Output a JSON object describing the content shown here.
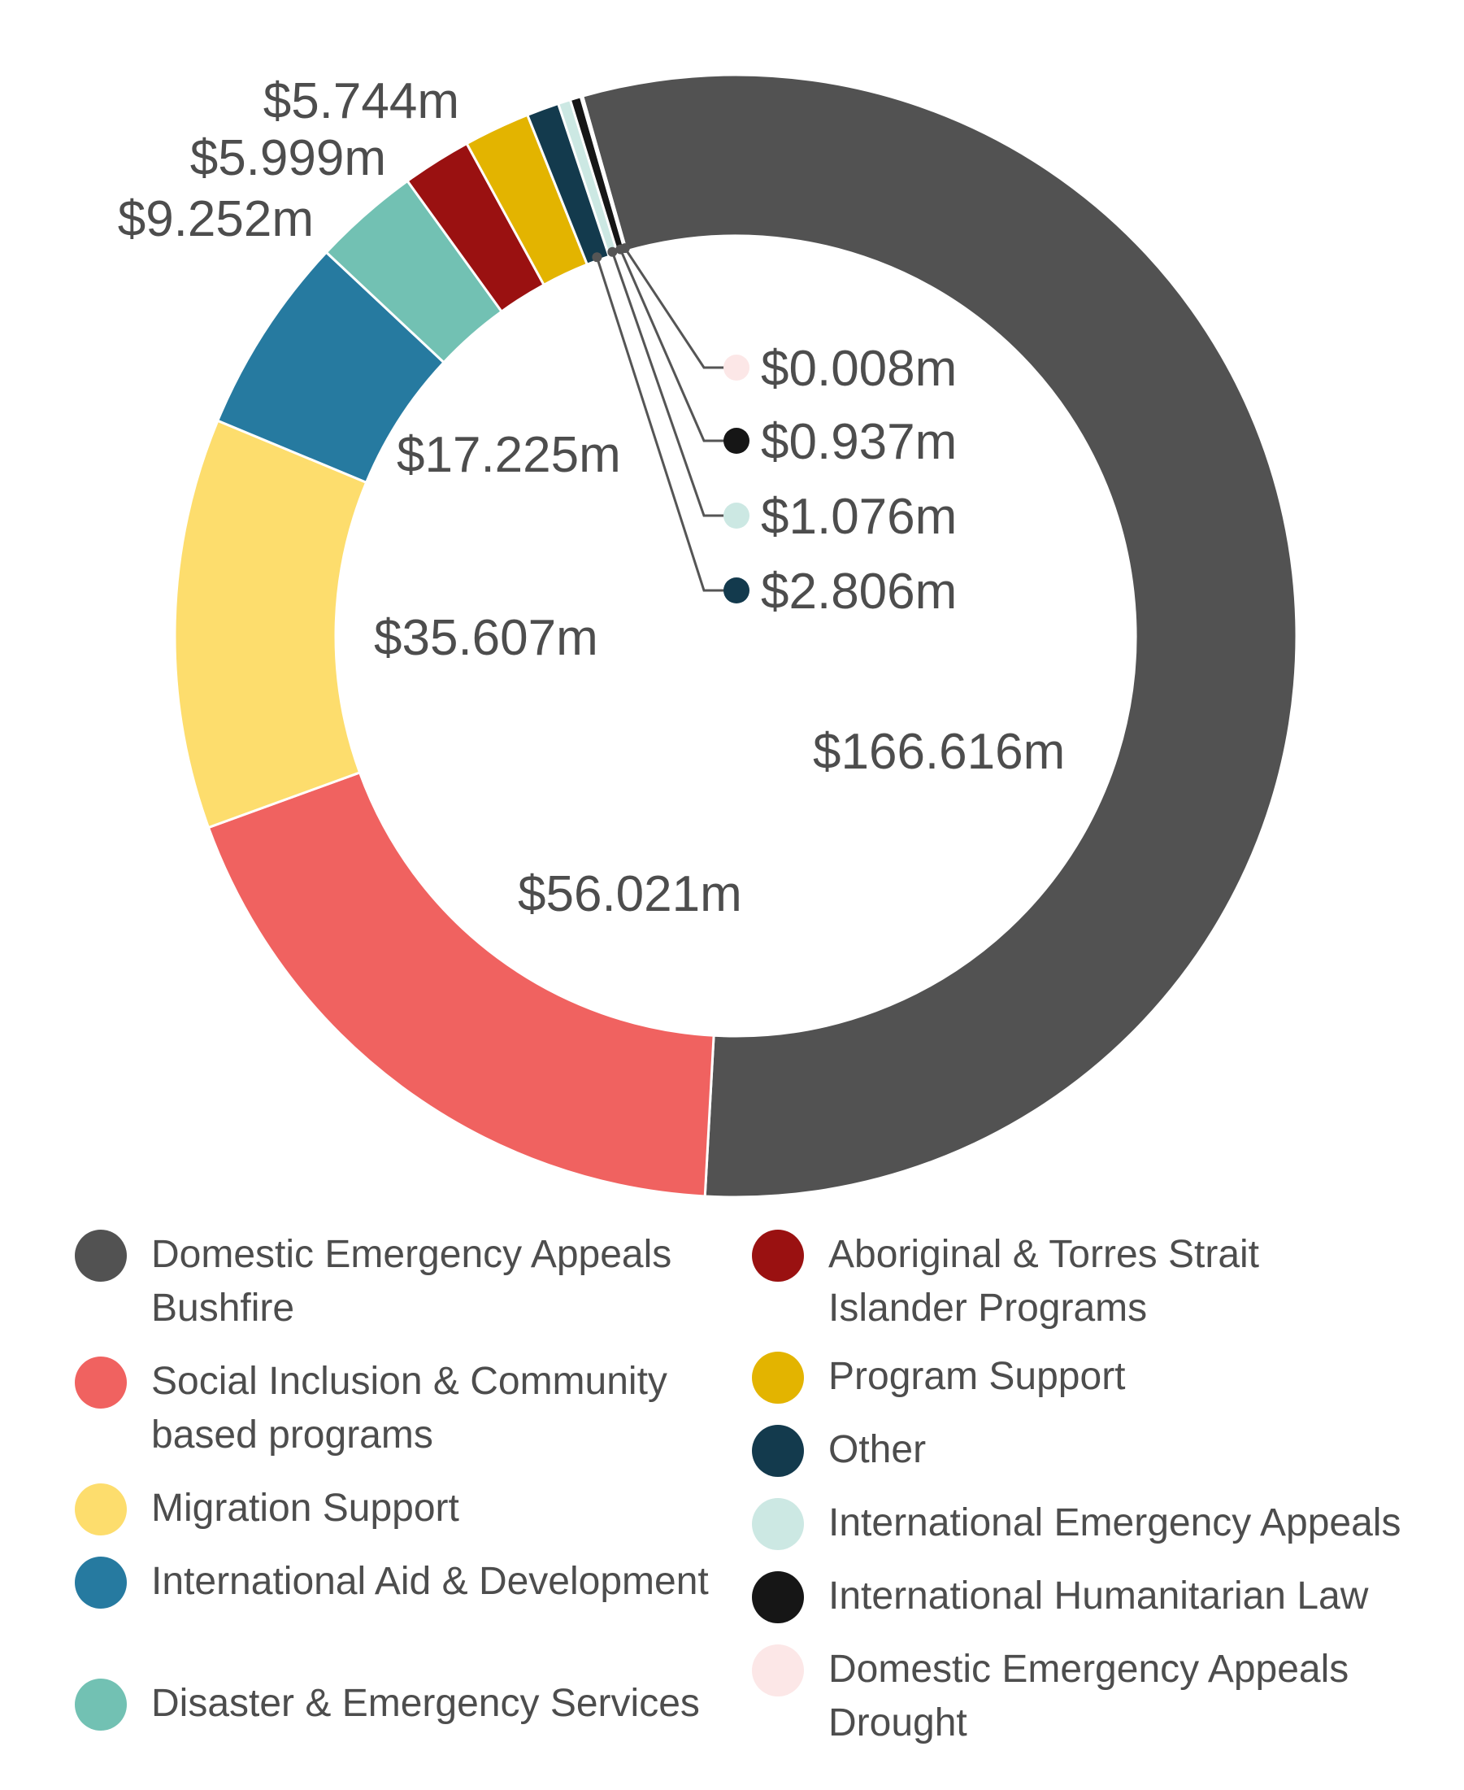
{
  "chart_data": {
    "type": "pie",
    "unit": "$m",
    "title": "",
    "slices": [
      {
        "label": "Domestic Emergency Appeals Bushfire",
        "value": 166.616,
        "value_label": "$166.616m",
        "color": "#525252"
      },
      {
        "label": "Social Inclusion & Community based programs",
        "value": 56.021,
        "value_label": "$56.021m",
        "color": "#f06260"
      },
      {
        "label": "Migration Support",
        "value": 35.607,
        "value_label": "$35.607m",
        "color": "#fddd6d"
      },
      {
        "label": "International Aid & Development",
        "value": 17.225,
        "value_label": "$17.225m",
        "color": "#267aa0"
      },
      {
        "label": "Disaster & Emergency Services",
        "value": 9.252,
        "value_label": "$9.252m",
        "color": "#72c1b3"
      },
      {
        "label": "Aboriginal & Torres Strait Islander Programs",
        "value": 5.999,
        "value_label": "$5.999m",
        "color": "#9a1111"
      },
      {
        "label": "Program Support",
        "value": 5.744,
        "value_label": "$5.744m",
        "color": "#e3b400"
      },
      {
        "label": "Other",
        "value": 2.806,
        "value_label": "$2.806m",
        "color": "#133a4d"
      },
      {
        "label": "International Emergency Appeals",
        "value": 1.076,
        "value_label": "$1.076m",
        "color": "#cce8e3"
      },
      {
        "label": "International Humanitarian Law",
        "value": 0.937,
        "value_label": "$0.937m",
        "color": "#161616"
      },
      {
        "label": "Domestic Emergency Appeals Drought",
        "value": 0.008,
        "value_label": "$0.008m",
        "color": "#fce7e7"
      }
    ],
    "legend_placement": "bottom"
  },
  "legend": {
    "left": [
      {
        "text": "Domestic Emergency Appeals Bushfire",
        "color": "#525252"
      },
      {
        "text": "Social Inclusion & Community based programs",
        "color": "#f06260"
      },
      {
        "text": "Migration Support",
        "color": "#fddd6d"
      },
      {
        "text": "International Aid & Development",
        "color": "#267aa0"
      },
      {
        "text": "Disaster & Emergency Services",
        "color": "#72c1b3"
      }
    ],
    "right": [
      {
        "text": "Aboriginal & Torres Strait Islander Programs",
        "color": "#9a1111"
      },
      {
        "text": "Program Support",
        "color": "#e3b400"
      },
      {
        "text": "Other",
        "color": "#133a4d"
      },
      {
        "text": "International Emergency Appeals",
        "color": "#cce8e3"
      },
      {
        "text": "International Humanitarian Law",
        "color": "#161616"
      },
      {
        "text": "Domestic Emergency Appeals Drought",
        "color": "#fce7e7"
      }
    ]
  }
}
